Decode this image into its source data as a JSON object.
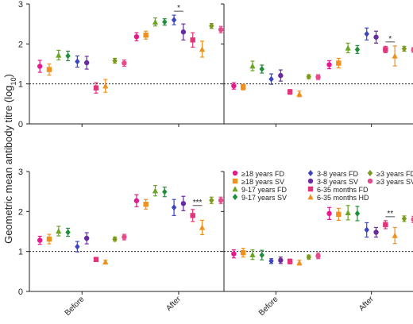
{
  "figure": {
    "ylabel": "Geometric mean antibody titre (log",
    "ylabel_sub": "10",
    "ylabel_close": ")",
    "x_groups": [
      "Before",
      "After"
    ],
    "reference_line": 1
  },
  "legend": [
    {
      "label": "≥18 years FD",
      "color": "#e6198c",
      "marker": "circle"
    },
    {
      "label": "≥18 years SV",
      "color": "#f0901e",
      "marker": "square"
    },
    {
      "label": "9-17 years FD",
      "color": "#6aa523",
      "marker": "triangle"
    },
    {
      "label": "9-17 years SV",
      "color": "#1f8f3a",
      "marker": "diamond"
    },
    {
      "label": "3-8 years FD",
      "color": "#3b45c4",
      "marker": "diamond"
    },
    {
      "label": "3-8 years SV",
      "color": "#6a2aa0",
      "marker": "circle"
    },
    {
      "label": "6-35 months FD",
      "color": "#e3337a",
      "marker": "square"
    },
    {
      "label": "6-35 months HD",
      "color": "#f0901e",
      "marker": "triangle"
    },
    {
      "label": "≥3 years FD",
      "color": "#7a9a1f",
      "marker": "diamond"
    },
    {
      "label": "≥3 years SV",
      "color": "#e64b8c",
      "marker": "circle"
    }
  ],
  "chart_data": [
    {
      "type": "scatter",
      "panel": "top-left",
      "ylim": [
        0,
        3
      ],
      "yticks": [
        0,
        1,
        2,
        3
      ],
      "groups": [
        "Before",
        "After"
      ],
      "series": [
        {
          "name": "≥18 years FD",
          "values": [
            [
              1.44,
              0.15
            ],
            [
              2.18,
              0.1
            ]
          ]
        },
        {
          "name": "≥18 years SV",
          "values": [
            [
              1.36,
              0.14
            ],
            [
              2.22,
              0.1
            ]
          ]
        },
        {
          "name": "9-17 years FD",
          "values": [
            [
              1.72,
              0.12
            ],
            [
              2.55,
              0.1
            ]
          ]
        },
        {
          "name": "9-17 years SV",
          "values": [
            [
              1.7,
              0.12
            ],
            [
              2.55,
              0.08
            ]
          ]
        },
        {
          "name": "3-8 years FD",
          "values": [
            [
              1.56,
              0.14
            ],
            [
              2.6,
              0.12
            ]
          ]
        },
        {
          "name": "3-8 years SV",
          "values": [
            [
              1.53,
              0.16
            ],
            [
              2.3,
              0.2
            ]
          ]
        },
        {
          "name": "6-35 months FD",
          "values": [
            [
              0.9,
              0.13
            ],
            [
              2.1,
              0.18
            ]
          ]
        },
        {
          "name": "6-35 months HD",
          "values": [
            [
              0.95,
              0.16
            ],
            [
              1.87,
              0.2
            ]
          ]
        },
        {
          "name": "≥3 years FD",
          "values": [
            [
              1.58,
              0.06
            ],
            [
              2.45,
              0.06
            ]
          ]
        },
        {
          "name": "≥3 years SV",
          "values": [
            [
              1.52,
              0.08
            ],
            [
              2.36,
              0.08
            ]
          ]
        }
      ],
      "annotations": [
        {
          "text": "*",
          "between": [
            "3-8 years FD",
            "3-8 years SV"
          ],
          "group": "After"
        }
      ]
    },
    {
      "type": "scatter",
      "panel": "top-right",
      "ylim": [
        0,
        3
      ],
      "yticks": [
        0,
        1,
        2,
        3
      ],
      "groups": [
        "Before",
        "After"
      ],
      "series": [
        {
          "name": "≥18 years FD",
          "values": [
            [
              0.95,
              0.08
            ],
            [
              1.48,
              0.1
            ]
          ]
        },
        {
          "name": "≥18 years SV",
          "values": [
            [
              0.92,
              0.07
            ],
            [
              1.52,
              0.12
            ]
          ]
        },
        {
          "name": "9-17 years FD",
          "values": [
            [
              1.45,
              0.12
            ],
            [
              1.9,
              0.12
            ]
          ]
        },
        {
          "name": "9-17 years SV",
          "values": [
            [
              1.37,
              0.1
            ],
            [
              1.86,
              0.1
            ]
          ]
        },
        {
          "name": "3-8 years FD",
          "values": [
            [
              1.12,
              0.13
            ],
            [
              2.25,
              0.15
            ]
          ]
        },
        {
          "name": "3-8 years SV",
          "values": [
            [
              1.21,
              0.14
            ],
            [
              2.17,
              0.15
            ]
          ]
        },
        {
          "name": "6-35 months FD",
          "values": [
            [
              0.8,
              0.06
            ],
            [
              1.86,
              0.08
            ]
          ]
        },
        {
          "name": "6-35 months HD",
          "values": [
            [
              0.75,
              0.07
            ],
            [
              1.7,
              0.25
            ]
          ]
        },
        {
          "name": "≥3 years FD",
          "values": [
            [
              1.18,
              0.05
            ],
            [
              1.88,
              0.06
            ]
          ]
        },
        {
          "name": "≥3 years SV",
          "values": [
            [
              1.17,
              0.06
            ],
            [
              1.85,
              0.06
            ]
          ]
        }
      ],
      "annotations": [
        {
          "text": "*",
          "between": [
            "6-35 months FD",
            "6-35 months HD"
          ],
          "group": "After"
        }
      ]
    },
    {
      "type": "scatter",
      "panel": "bottom-left",
      "ylim": [
        0,
        3
      ],
      "yticks": [
        0,
        1,
        2,
        3
      ],
      "groups": [
        "Before",
        "After"
      ],
      "series": [
        {
          "name": "≥18 years FD",
          "values": [
            [
              1.28,
              0.1
            ],
            [
              2.27,
              0.15
            ]
          ]
        },
        {
          "name": "≥18 years SV",
          "values": [
            [
              1.31,
              0.12
            ],
            [
              2.18,
              0.12
            ]
          ]
        },
        {
          "name": "9-17 years FD",
          "values": [
            [
              1.51,
              0.12
            ],
            [
              2.52,
              0.13
            ]
          ]
        },
        {
          "name": "9-17 years SV",
          "values": [
            [
              1.48,
              0.1
            ],
            [
              2.49,
              0.12
            ]
          ]
        },
        {
          "name": "3-8 years FD",
          "values": [
            [
              1.12,
              0.13
            ],
            [
              2.1,
              0.2
            ]
          ]
        },
        {
          "name": "3-8 years SV",
          "values": [
            [
              1.33,
              0.14
            ],
            [
              2.2,
              0.18
            ]
          ]
        },
        {
          "name": "6-35 months FD",
          "values": [
            [
              0.8,
              0.05
            ],
            [
              1.9,
              0.15
            ]
          ]
        },
        {
          "name": "6-35 months HD",
          "values": [
            [
              0.74,
              0.04
            ],
            [
              1.6,
              0.18
            ]
          ]
        },
        {
          "name": "≥3 years FD",
          "values": [
            [
              1.31,
              0.05
            ],
            [
              2.28,
              0.08
            ]
          ]
        },
        {
          "name": "≥3 years SV",
          "values": [
            [
              1.36,
              0.07
            ],
            [
              2.28,
              0.08
            ]
          ]
        }
      ],
      "annotations": [
        {
          "text": "***",
          "between": [
            "6-35 months FD",
            "6-35 months HD"
          ],
          "group": "After"
        }
      ]
    },
    {
      "type": "scatter",
      "panel": "bottom-right",
      "ylim": [
        0,
        3
      ],
      "yticks": [
        0,
        1,
        2,
        3
      ],
      "groups": [
        "Before",
        "After"
      ],
      "series": [
        {
          "name": "≥18 years FD",
          "values": [
            [
              0.94,
              0.1
            ],
            [
              1.95,
              0.15
            ]
          ]
        },
        {
          "name": "≥18 years SV",
          "values": [
            [
              0.97,
              0.11
            ],
            [
              1.93,
              0.15
            ]
          ]
        },
        {
          "name": "9-17 years FD",
          "values": [
            [
              0.92,
              0.12
            ],
            [
              1.97,
              0.18
            ]
          ]
        },
        {
          "name": "9-17 years SV",
          "values": [
            [
              0.91,
              0.12
            ],
            [
              1.95,
              0.18
            ]
          ]
        },
        {
          "name": "3-8 years FD",
          "values": [
            [
              0.76,
              0.06
            ],
            [
              1.54,
              0.18
            ]
          ]
        },
        {
          "name": "3-8 years SV",
          "values": [
            [
              0.78,
              0.08
            ],
            [
              1.48,
              0.12
            ]
          ]
        },
        {
          "name": "6-35 months FD",
          "values": [
            [
              0.75,
              0.06
            ],
            [
              1.67,
              0.1
            ]
          ]
        },
        {
          "name": "6-35 months HD",
          "values": [
            [
              0.72,
              0.06
            ],
            [
              1.4,
              0.2
            ]
          ]
        },
        {
          "name": "≥3 years FD",
          "values": [
            [
              0.86,
              0.05
            ],
            [
              1.82,
              0.07
            ]
          ]
        },
        {
          "name": "≥3 years SV",
          "values": [
            [
              0.89,
              0.07
            ],
            [
              1.8,
              0.08
            ]
          ]
        }
      ],
      "annotations": [
        {
          "text": "**",
          "between": [
            "6-35 months FD",
            "6-35 months HD"
          ],
          "group": "After"
        }
      ]
    }
  ]
}
